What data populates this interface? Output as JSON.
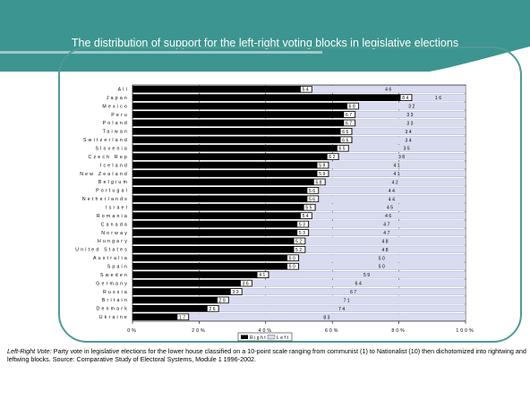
{
  "slide": {
    "title": "The distribution of support for the left-right voting blocks in legislative elections",
    "footnote_lead": "Left-Right Vote:",
    "footnote_text": " Party vote in legislative elections for the lower house classified on a 10-point scale ranging from communist (1) to Nationalist (10) then dichotomized into rightwing and leftwing blocks. Source: Comparative Study of Electoral Systems, Module 1 1996-2002."
  },
  "colors": {
    "header": "#3c9590",
    "frame": "#4f9a96",
    "right_bar": "#000000",
    "left_bar": "#d9dcf0"
  },
  "chart_data": {
    "type": "bar",
    "orientation": "horizontal",
    "stacked": true,
    "title": "",
    "categories": [
      "All",
      "Japan",
      "Mexico",
      "Peru",
      "Poland",
      "Taiwan",
      "Switzerland",
      "Slovenia",
      "Czech Rep",
      "Iceland",
      "New Zealand",
      "Belgium",
      "Portugal",
      "Netherlands",
      "Israel",
      "Romania",
      "Canada",
      "Norway",
      "Hungary",
      "United States",
      "Australia",
      "Spain",
      "Sweden",
      "Germany",
      "Russia",
      "Britain",
      "Denmark",
      "Ukraine"
    ],
    "series": [
      {
        "name": "Right",
        "values": [
          54,
          84,
          68,
          67,
          67,
          66,
          66,
          65,
          62,
          59,
          59,
          58,
          56,
          56,
          55,
          54,
          53,
          53,
          52,
          52,
          50,
          50,
          41,
          36,
          33,
          29,
          26,
          17
        ]
      },
      {
        "name": "Left",
        "values": [
          46,
          16,
          32,
          33,
          33,
          34,
          34,
          35,
          38,
          41,
          41,
          42,
          44,
          44,
          45,
          46,
          47,
          47,
          48,
          48,
          50,
          50,
          59,
          64,
          67,
          71,
          74,
          83
        ]
      }
    ],
    "xlim": [
      0,
      100
    ],
    "x_ticks": [
      "0%",
      "20%",
      "40%",
      "60%",
      "80%",
      "100%"
    ],
    "xlabel": "",
    "ylabel": "",
    "legend": {
      "position": "bottom",
      "entries": [
        "Right",
        "Left"
      ]
    },
    "grid": true
  }
}
